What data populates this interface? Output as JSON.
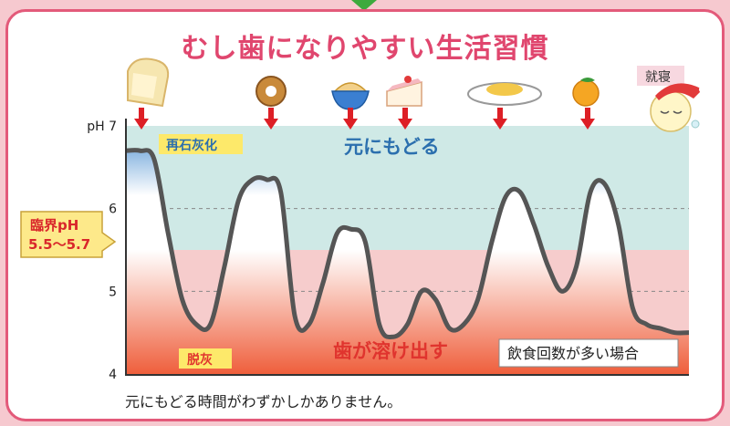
{
  "title": "むし歯になりやすい生活習慣",
  "caption": "元にもどる時間がわずかしかありません。",
  "annotations": {
    "remineral_label": "再石灰化",
    "return_label": "元にもどる",
    "demineral_label": "脱灰",
    "dissolve_label": "歯が溶け出す",
    "case_label": "飲食回数が多い場合",
    "critical_line1": "臨界pH",
    "critical_line2": "5.5～5.7",
    "sleep_label": "就寝"
  },
  "events": [
    {
      "icon": "toast-icon"
    },
    {
      "icon": "donut-icon"
    },
    {
      "icon": "sweets-bowl-icon"
    },
    {
      "icon": "cake-icon"
    },
    {
      "icon": "meal-plate-icon"
    },
    {
      "icon": "orange-icon"
    },
    {
      "icon": "sleeping-face-icon"
    }
  ],
  "chart_data": {
    "type": "line",
    "ylabel": "pH",
    "yticks": [
      {
        "value": 7,
        "label": "pH 7"
      },
      {
        "value": 6,
        "label": "6"
      },
      {
        "value": 5,
        "label": "5"
      },
      {
        "value": 4,
        "label": "4"
      }
    ],
    "ylim": [
      4,
      7
    ],
    "critical_ph": 5.5,
    "gridlines": [
      6,
      5
    ],
    "values": [
      6.7,
      6.7,
      6.6,
      5.7,
      4.9,
      4.6,
      4.6,
      5.3,
      6.1,
      6.35,
      6.35,
      6.2,
      4.7,
      4.6,
      5.1,
      5.7,
      5.75,
      5.6,
      4.6,
      4.45,
      4.6,
      5.0,
      4.9,
      4.55,
      4.6,
      4.9,
      5.6,
      6.15,
      6.2,
      5.8,
      5.3,
      5.0,
      5.3,
      6.2,
      6.3,
      5.8,
      4.8,
      4.6,
      4.55,
      4.5,
      4.5
    ],
    "colors": {
      "curve": "#555555",
      "upper_band": "#cfe9e6",
      "lower_band": "#f6cccc",
      "fill_top": "#4a8ed0",
      "fill_bottom": "#ef5f3c",
      "arrow": "#dd1f26"
    }
  }
}
